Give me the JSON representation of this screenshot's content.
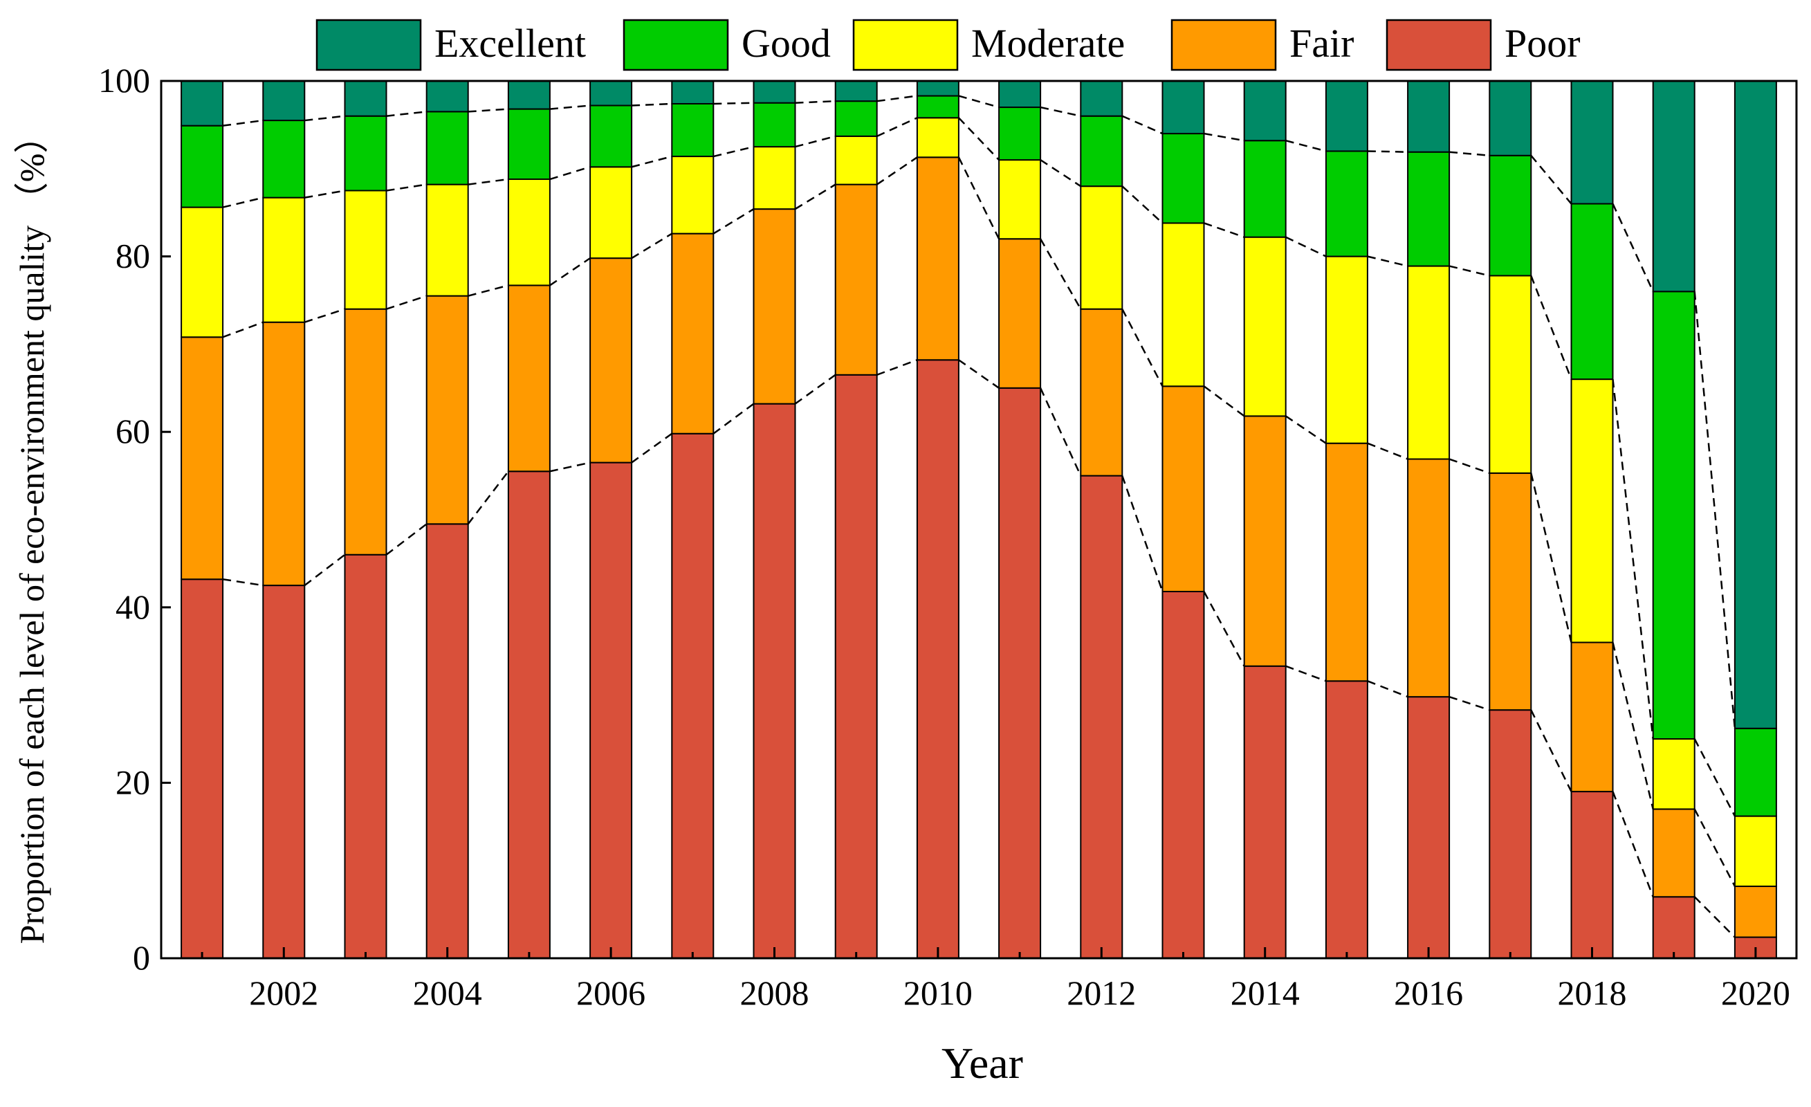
{
  "chart_data": {
    "type": "bar",
    "stacked": true,
    "title": "",
    "xlabel": "Year",
    "ylabel": "Proportion of each level of eco-environment quality （%）",
    "ylim": [
      0,
      100
    ],
    "yticks": [
      0,
      20,
      40,
      60,
      80,
      100
    ],
    "categories": [
      2001,
      2002,
      2003,
      2004,
      2005,
      2006,
      2007,
      2008,
      2009,
      2010,
      2011,
      2012,
      2013,
      2014,
      2015,
      2016,
      2017,
      2018,
      2019,
      2020
    ],
    "xtick_labels": [
      "",
      "2002",
      "",
      "2004",
      "",
      "2006",
      "",
      "2008",
      "",
      "2010",
      "",
      "2012",
      "",
      "2014",
      "",
      "2016",
      "",
      "2018",
      "",
      "2020"
    ],
    "legend_position": "top",
    "connector_lines": "dashed",
    "series": [
      {
        "name": "Poor",
        "color": "#d9503a",
        "values": [
          43.2,
          42.5,
          46.0,
          49.5,
          55.5,
          56.5,
          59.8,
          63.2,
          66.5,
          68.2,
          65.0,
          55.0,
          41.8,
          33.3,
          31.6,
          29.8,
          28.3,
          19.0,
          7.0,
          2.4
        ]
      },
      {
        "name": "Fair",
        "color": "#ff9a00",
        "values": [
          27.6,
          30.0,
          28.0,
          26.0,
          21.2,
          23.3,
          22.8,
          22.2,
          21.7,
          23.1,
          17.0,
          19.0,
          23.4,
          28.5,
          27.1,
          27.1,
          27.0,
          17.0,
          10.0,
          5.8
        ]
      },
      {
        "name": "Moderate",
        "color": "#ffff00",
        "values": [
          14.8,
          14.2,
          13.5,
          12.7,
          12.1,
          10.4,
          8.8,
          7.1,
          5.5,
          4.5,
          9.0,
          14.0,
          18.6,
          20.4,
          21.3,
          22.0,
          22.5,
          30.0,
          8.0,
          8.0
        ]
      },
      {
        "name": "Good",
        "color": "#00cc00",
        "values": [
          9.3,
          8.8,
          8.5,
          8.3,
          8.0,
          7.0,
          6.0,
          5.0,
          4.0,
          2.5,
          6.0,
          8.0,
          10.2,
          11.0,
          12.0,
          13.0,
          13.7,
          20.0,
          51.0,
          10.0
        ]
      },
      {
        "name": "Excellent",
        "color": "#008a66",
        "values": [
          5.1,
          4.5,
          4.0,
          3.5,
          3.2,
          2.8,
          2.6,
          2.5,
          2.3,
          1.7,
          3.0,
          4.0,
          6.0,
          6.8,
          8.0,
          8.1,
          8.5,
          14.0,
          24.0,
          73.8
        ]
      }
    ],
    "legend_order": [
      "Excellent",
      "Good",
      "Moderate",
      "Fair",
      "Poor"
    ]
  }
}
